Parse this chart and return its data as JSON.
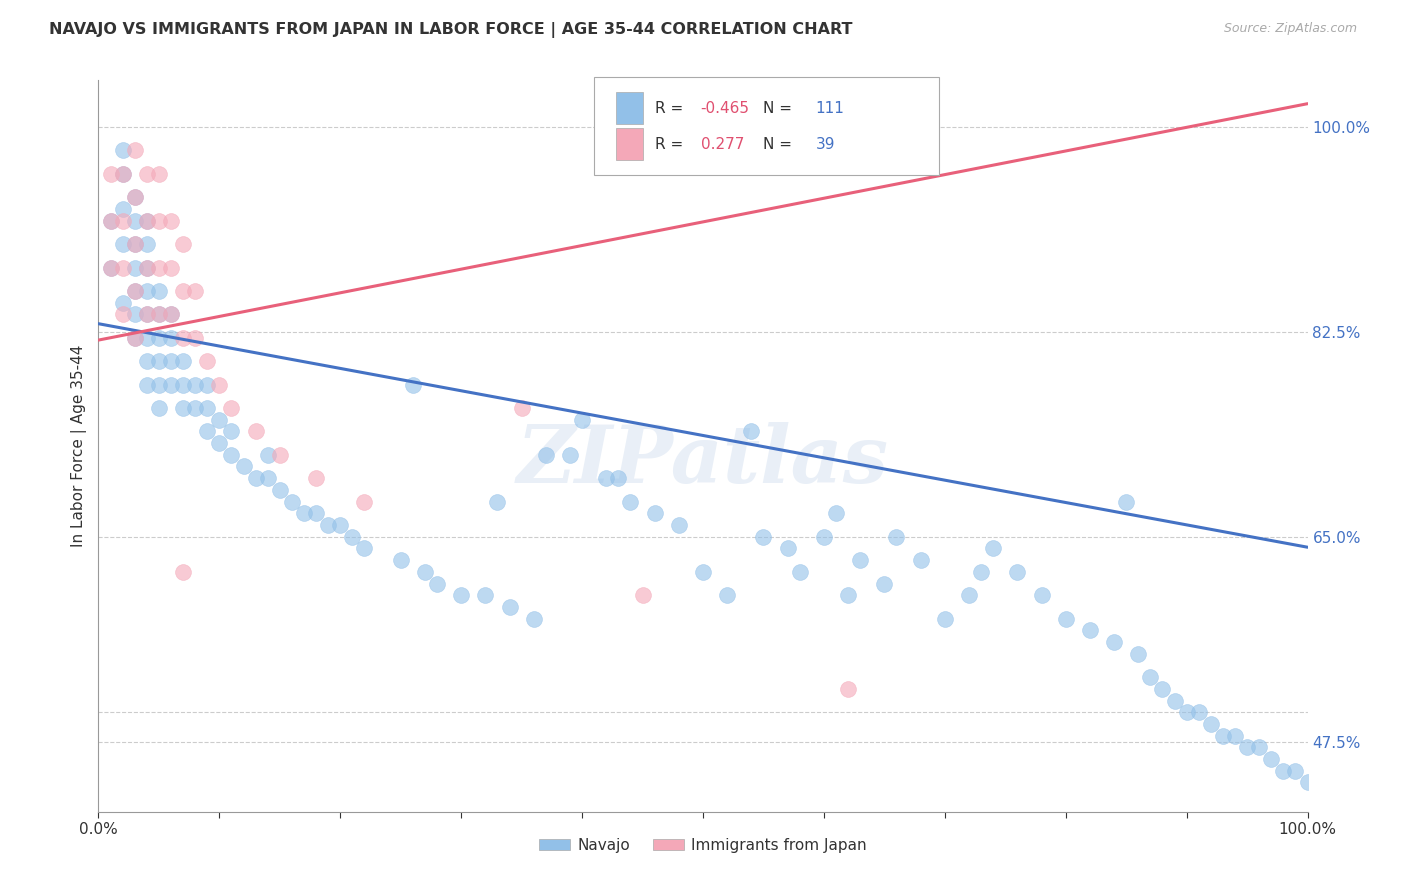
{
  "title": "NAVAJO VS IMMIGRANTS FROM JAPAN IN LABOR FORCE | AGE 35-44 CORRELATION CHART",
  "source": "Source: ZipAtlas.com",
  "ylabel": "In Labor Force | Age 35-44",
  "xmin": 0.0,
  "xmax": 1.0,
  "ymin": 0.415,
  "ymax": 1.04,
  "navajo_R": -0.465,
  "navajo_N": 111,
  "japan_R": 0.277,
  "japan_N": 39,
  "navajo_color": "#92C0E8",
  "japan_color": "#F4A8B8",
  "navajo_line_color": "#4472C4",
  "japan_line_color": "#E8607A",
  "background_color": "#FFFFFF",
  "legend_R_color": "#E05070",
  "legend_N_color": "#4472C4",
  "watermark": "ZIPatlas",
  "ytick_positions": [
    0.475,
    0.5,
    0.65,
    0.825,
    1.0
  ],
  "ytick_labels": [
    "47.5%",
    "",
    "65.0%",
    "82.5%",
    "100.0%"
  ],
  "xtick_positions": [
    0.0,
    0.1,
    0.2,
    0.3,
    0.4,
    0.5,
    0.6,
    0.7,
    0.8,
    0.9,
    1.0
  ],
  "xtick_labels": [
    "0.0%",
    "",
    "",
    "",
    "",
    "",
    "",
    "",
    "",
    "",
    "100.0%"
  ],
  "navajo_line_x0": 0.0,
  "navajo_line_y0": 0.832,
  "navajo_line_x1": 1.0,
  "navajo_line_y1": 0.641,
  "japan_line_x0": 0.0,
  "japan_line_y0": 0.818,
  "japan_line_x1": 1.0,
  "japan_line_y1": 1.02,
  "navajo_x": [
    0.01,
    0.01,
    0.02,
    0.02,
    0.02,
    0.02,
    0.02,
    0.03,
    0.03,
    0.03,
    0.03,
    0.03,
    0.03,
    0.03,
    0.04,
    0.04,
    0.04,
    0.04,
    0.04,
    0.04,
    0.04,
    0.04,
    0.05,
    0.05,
    0.05,
    0.05,
    0.05,
    0.05,
    0.06,
    0.06,
    0.06,
    0.06,
    0.07,
    0.07,
    0.07,
    0.08,
    0.08,
    0.09,
    0.09,
    0.09,
    0.1,
    0.1,
    0.11,
    0.11,
    0.12,
    0.13,
    0.14,
    0.14,
    0.15,
    0.16,
    0.17,
    0.18,
    0.19,
    0.2,
    0.21,
    0.22,
    0.25,
    0.27,
    0.28,
    0.3,
    0.32,
    0.34,
    0.36,
    0.37,
    0.4,
    0.42,
    0.44,
    0.46,
    0.48,
    0.5,
    0.52,
    0.54,
    0.57,
    0.6,
    0.61,
    0.63,
    0.65,
    0.66,
    0.68,
    0.7,
    0.72,
    0.73,
    0.74,
    0.76,
    0.78,
    0.8,
    0.82,
    0.84,
    0.85,
    0.86,
    0.87,
    0.88,
    0.89,
    0.9,
    0.91,
    0.92,
    0.93,
    0.94,
    0.95,
    0.96,
    0.97,
    0.98,
    0.99,
    1.0,
    0.26,
    0.33,
    0.39,
    0.43,
    0.55,
    0.58,
    0.62
  ],
  "navajo_y": [
    0.88,
    0.92,
    0.85,
    0.9,
    0.93,
    0.96,
    0.98,
    0.82,
    0.84,
    0.86,
    0.88,
    0.9,
    0.92,
    0.94,
    0.78,
    0.8,
    0.82,
    0.84,
    0.86,
    0.88,
    0.9,
    0.92,
    0.76,
    0.78,
    0.8,
    0.82,
    0.84,
    0.86,
    0.78,
    0.8,
    0.82,
    0.84,
    0.76,
    0.78,
    0.8,
    0.76,
    0.78,
    0.74,
    0.76,
    0.78,
    0.73,
    0.75,
    0.72,
    0.74,
    0.71,
    0.7,
    0.7,
    0.72,
    0.69,
    0.68,
    0.67,
    0.67,
    0.66,
    0.66,
    0.65,
    0.64,
    0.63,
    0.62,
    0.61,
    0.6,
    0.6,
    0.59,
    0.58,
    0.72,
    0.75,
    0.7,
    0.68,
    0.67,
    0.66,
    0.62,
    0.6,
    0.74,
    0.64,
    0.65,
    0.67,
    0.63,
    0.61,
    0.65,
    0.63,
    0.58,
    0.6,
    0.62,
    0.64,
    0.62,
    0.6,
    0.58,
    0.57,
    0.56,
    0.68,
    0.55,
    0.53,
    0.52,
    0.51,
    0.5,
    0.5,
    0.49,
    0.48,
    0.48,
    0.47,
    0.47,
    0.46,
    0.45,
    0.45,
    0.44,
    0.78,
    0.68,
    0.72,
    0.7,
    0.65,
    0.62,
    0.6
  ],
  "japan_x": [
    0.01,
    0.01,
    0.01,
    0.02,
    0.02,
    0.02,
    0.02,
    0.03,
    0.03,
    0.03,
    0.03,
    0.03,
    0.04,
    0.04,
    0.04,
    0.04,
    0.05,
    0.05,
    0.05,
    0.05,
    0.06,
    0.06,
    0.06,
    0.07,
    0.07,
    0.07,
    0.08,
    0.08,
    0.09,
    0.1,
    0.11,
    0.13,
    0.15,
    0.18,
    0.22,
    0.35,
    0.45,
    0.62,
    0.07
  ],
  "japan_y": [
    0.88,
    0.92,
    0.96,
    0.84,
    0.88,
    0.92,
    0.96,
    0.82,
    0.86,
    0.9,
    0.94,
    0.98,
    0.84,
    0.88,
    0.92,
    0.96,
    0.84,
    0.88,
    0.92,
    0.96,
    0.84,
    0.88,
    0.92,
    0.82,
    0.86,
    0.9,
    0.82,
    0.86,
    0.8,
    0.78,
    0.76,
    0.74,
    0.72,
    0.7,
    0.68,
    0.76,
    0.6,
    0.52,
    0.62
  ]
}
